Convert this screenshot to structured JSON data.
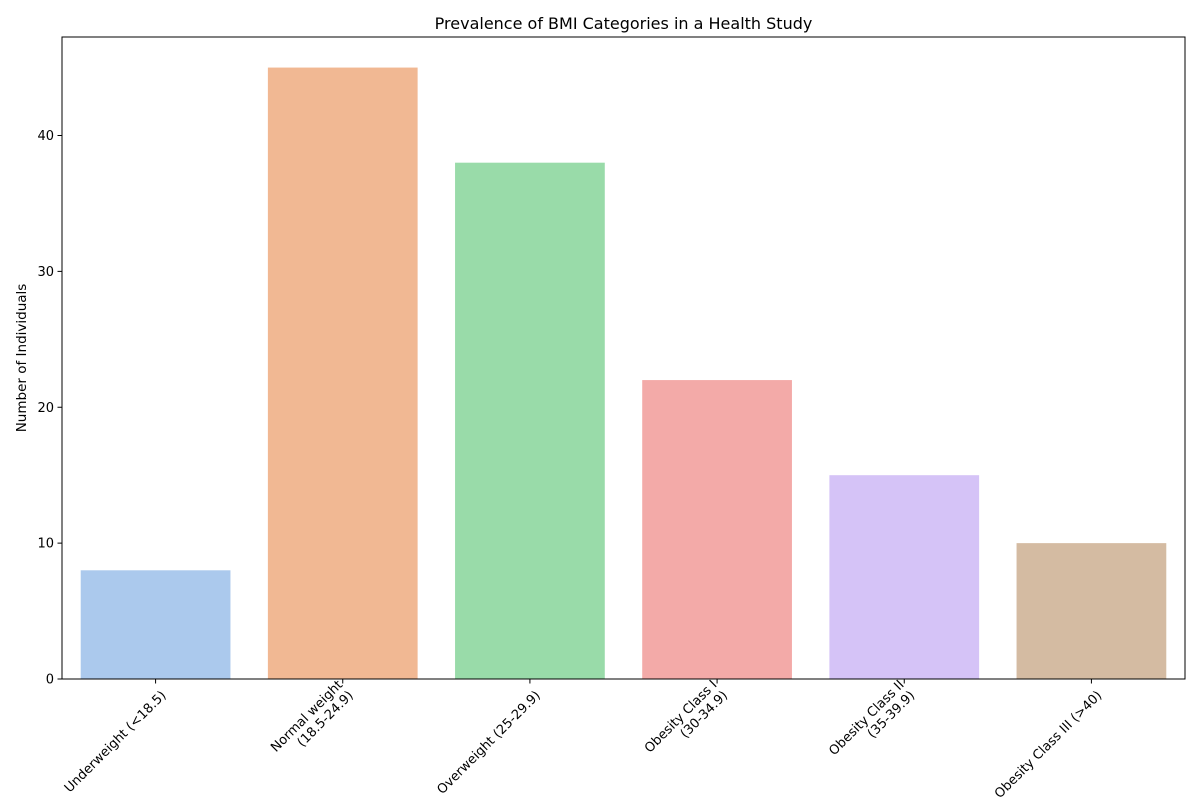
{
  "chart_data": {
    "type": "bar",
    "title": "Prevalence of BMI Categories in a Health Study",
    "xlabel": "",
    "ylabel": "Number of Individuals",
    "categories": [
      [
        "Underweight (<18.5)"
      ],
      [
        "Normal weight",
        "(18.5-24.9)"
      ],
      [
        "Overweight (25-29.9)"
      ],
      [
        "Obesity Class I",
        "(30-34.9)"
      ],
      [
        "Obesity Class II",
        "(35-39.9)"
      ],
      [
        "Obesity Class III (>40)"
      ]
    ],
    "values": [
      8,
      45,
      38,
      22,
      15,
      10
    ],
    "colors": [
      "#abc9ed",
      "#f1b893",
      "#99dba9",
      "#f3aaa8",
      "#d5c3f7",
      "#d4bba2"
    ],
    "yticks": [
      0,
      10,
      20,
      30,
      40
    ],
    "ylim": [
      0,
      47.25
    ],
    "grid": false,
    "legend": "none"
  }
}
